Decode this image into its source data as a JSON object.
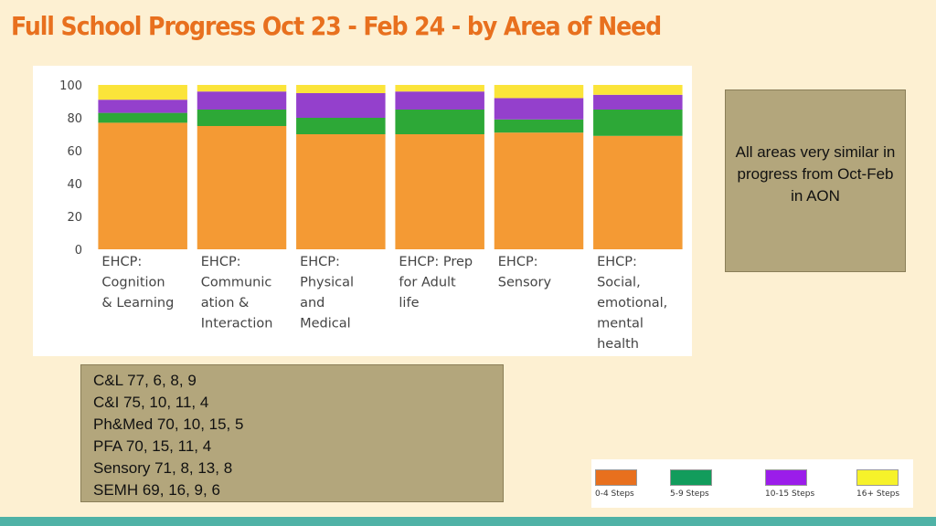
{
  "title": "Full School Progress Oct 23 - Feb 24 - by Area of Need",
  "note": "All areas very similar in progress from Oct-Feb in AON",
  "data_lines": [
    "C&L 77, 6, 8, 9",
    "C&I 75, 10, 11, 4",
    "Ph&Med 70, 10, 15, 5",
    "PFA 70, 15, 11, 4",
    "Sensory 71, 8, 13, 8",
    "SEMH 69, 16, 9, 6"
  ],
  "legend": [
    {
      "label": "0-4 Steps",
      "color": "#e8701e"
    },
    {
      "label": "5-9 Steps",
      "color": "#129c5c"
    },
    {
      "label": "10-15 Steps",
      "color": "#9b1dea"
    },
    {
      "label": "16+ Steps",
      "color": "#f6f22a"
    }
  ],
  "chart_data": {
    "type": "bar",
    "stacked": true,
    "ylim": [
      0,
      100
    ],
    "yticks": [
      0,
      20,
      40,
      60,
      80,
      100
    ],
    "categories": [
      [
        "EHCP:",
        "Cognition",
        "& Learning"
      ],
      [
        "EHCP:",
        "Communic",
        "ation &",
        "Interaction"
      ],
      [
        "EHCP:",
        "Physical",
        "and",
        "Medical"
      ],
      [
        "EHCP: Prep",
        "for Adult",
        "life"
      ],
      [
        "EHCP:",
        "Sensory"
      ],
      [
        "EHCP:",
        "Social,",
        "emotional,",
        "mental",
        "health"
      ]
    ],
    "series": [
      {
        "name": "0-4 Steps",
        "color": "#f49a34",
        "values": [
          77,
          75,
          70,
          70,
          71,
          69
        ]
      },
      {
        "name": "5-9 Steps",
        "color": "#2da837",
        "values": [
          6,
          10,
          10,
          15,
          8,
          16
        ]
      },
      {
        "name": "10-15 Steps",
        "color": "#9440cc",
        "values": [
          8,
          11,
          15,
          11,
          13,
          9
        ]
      },
      {
        "name": "16+ Steps",
        "color": "#fbe43a",
        "values": [
          9,
          4,
          5,
          4,
          8,
          6
        ]
      }
    ],
    "grid": false,
    "legend_position": "bottom-right"
  }
}
